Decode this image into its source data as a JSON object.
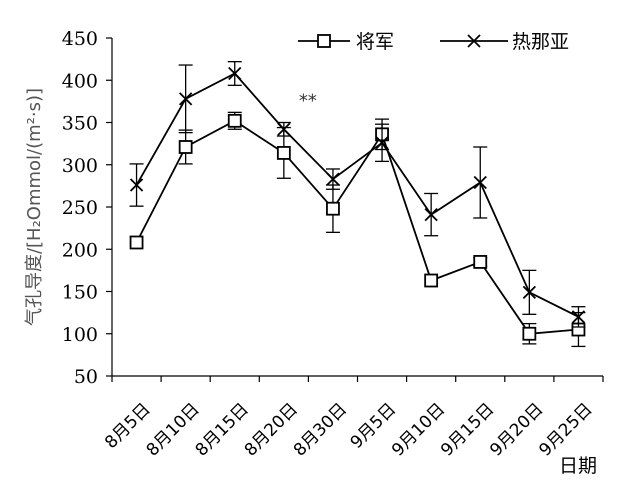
{
  "chart_data": {
    "type": "line",
    "categories": [
      "8月5日",
      "8月10日",
      "8月15日",
      "8月20日",
      "8月30日",
      "9月5日",
      "9月10日",
      "9月15日",
      "9月20日",
      "9月25日"
    ],
    "ylabel": "气孔导度/[H₂Ommol/(m²·s)]",
    "xlabel": "日期",
    "ylim": [
      50,
      450
    ],
    "yticks": [
      50,
      100,
      150,
      200,
      250,
      300,
      350,
      400,
      450
    ],
    "grid": false,
    "legend_position": "top-right",
    "annotations": [
      {
        "text": "**",
        "category_index": 3
      }
    ],
    "series": [
      {
        "name": "将军",
        "marker": "square",
        "values": [
          208,
          321,
          352,
          314,
          248,
          336,
          163,
          185,
          100,
          105
        ],
        "errors": [
          0,
          20,
          10,
          30,
          28,
          18,
          0,
          5,
          12,
          20
        ]
      },
      {
        "name": "热那亚",
        "marker": "x",
        "values": [
          276,
          378,
          408,
          342,
          283,
          326,
          241,
          279,
          149,
          120
        ],
        "errors": [
          25,
          40,
          14,
          8,
          12,
          22,
          25,
          42,
          26,
          12
        ]
      }
    ]
  }
}
